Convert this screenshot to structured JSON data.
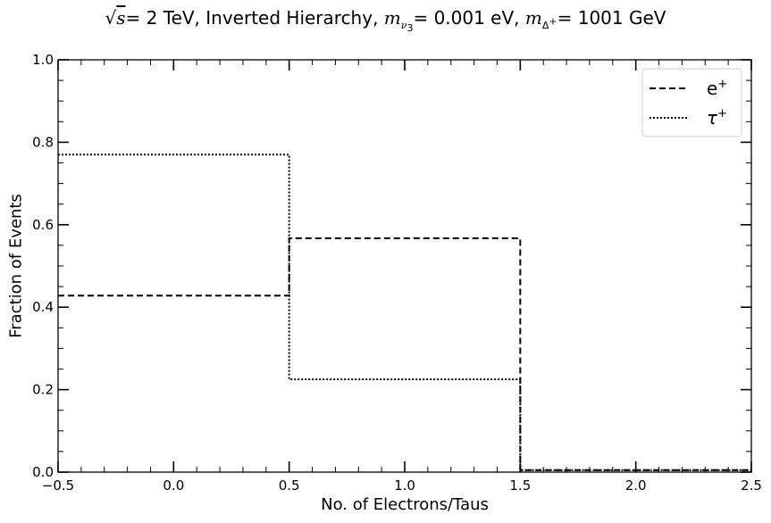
{
  "chart_data": {
    "type": "step",
    "title": {
      "prefix": "√",
      "sqrt_var": "s",
      "energy": "= 2 TeV, Inverted Hierarchy, ",
      "m1": "m",
      "m1_sub": "ν",
      "m1_subsub": "3",
      "value1": "= 0.001 eV, ",
      "m2": "m",
      "m2_sub": "Δ",
      "m2_subsup": "+",
      "value2": "= 1001 GeV"
    },
    "xlabel": "No. of Electrons/Taus",
    "ylabel": "Fraction of Events",
    "xlim": [
      -0.5,
      2.5
    ],
    "ylim": [
      0.0,
      1.0
    ],
    "xticks": [
      -0.5,
      0.0,
      0.5,
      1.0,
      1.5,
      2.0,
      2.5
    ],
    "xtick_labels": [
      "−0.5",
      "0.0",
      "0.5",
      "1.0",
      "1.5",
      "2.0",
      "2.5"
    ],
    "yticks": [
      0.0,
      0.2,
      0.4,
      0.6,
      0.8,
      1.0
    ],
    "ytick_labels": [
      "0.0",
      "0.2",
      "0.4",
      "0.6",
      "0.8",
      "1.0"
    ],
    "bin_edges": [
      -0.5,
      0.5,
      1.5,
      2.5
    ],
    "series": [
      {
        "name": "e",
        "name_sup": "+",
        "style": "dashed",
        "color": "#000000",
        "values": [
          0.428,
          0.567,
          0.005
        ]
      },
      {
        "name": "τ",
        "name_sup": "+",
        "style": "dotted",
        "color": "#000000",
        "values": [
          0.77,
          0.225,
          0.005
        ]
      }
    ],
    "legend": "top-right",
    "grid": false
  }
}
